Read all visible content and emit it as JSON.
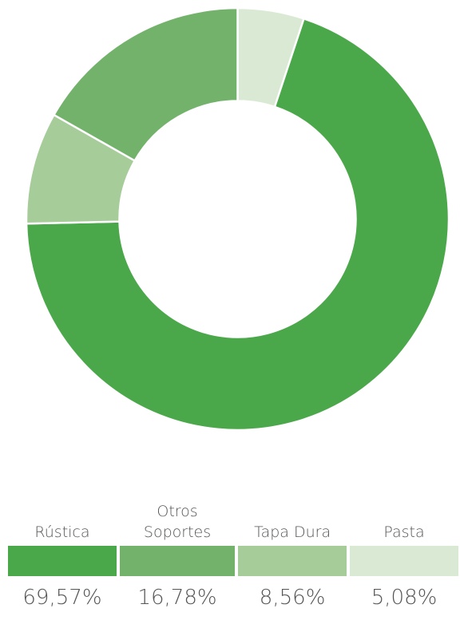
{
  "chart_data": {
    "type": "donut",
    "categories": [
      "Rústica",
      "Otros Soportes",
      "Tapa Dura",
      "Pasta"
    ],
    "values": [
      69.57,
      16.78,
      8.56,
      5.08
    ],
    "value_labels": [
      "69,57%",
      "16,78%",
      "8,56%",
      "5,08%"
    ],
    "colors": [
      "#4aa84a",
      "#72b26a",
      "#a6cc99",
      "#d9e9d3"
    ]
  }
}
